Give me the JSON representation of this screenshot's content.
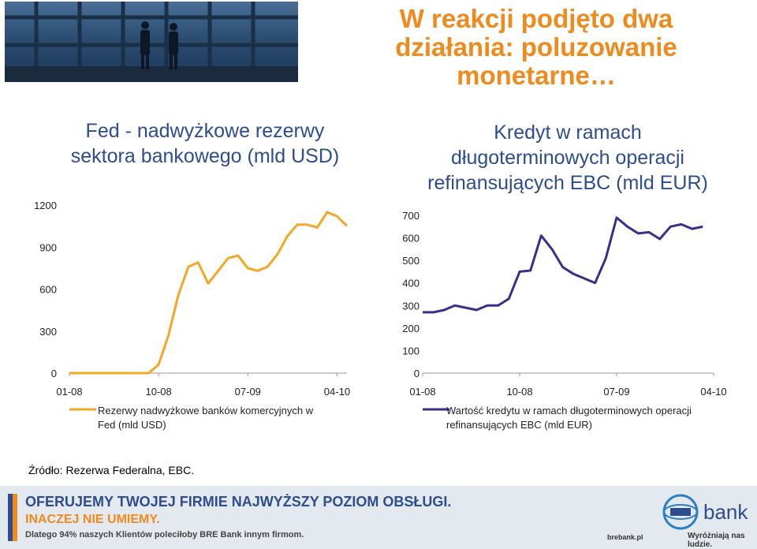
{
  "slide": {
    "title_lines": [
      "W reakcji podjęto dwa",
      "działania: poluzowanie",
      "monetarne…"
    ],
    "source": "Źródło: Rezerwa Federalna, EBC."
  },
  "banner": {
    "line1": "OFERUJEMY TWOJEJ FIRMIE NAJWYŻSZY POZIOM OBSŁUGI.",
    "line2": "INACZEJ NIE UMIEMY.",
    "line3": "Dlatego 94% naszych Klientów poleciłoby BRE Bank innym firmom.",
    "bank_name": "bank",
    "site": "brebank.pl",
    "slogan": "Wyróżniają nas ludzie."
  },
  "chart_data": [
    {
      "type": "line",
      "title_lines": [
        "Fed - nadwyżkowe rezerwy",
        "sektora bankowego (mld USD)"
      ],
      "x_tick_labels": [
        "01-08",
        "10-08",
        "07-09",
        "04-10"
      ],
      "x_tick_indices": [
        0,
        9,
        18,
        27
      ],
      "y_ticks": [
        0,
        300,
        600,
        900,
        1200
      ],
      "ylim": [
        0,
        1200
      ],
      "color": "#f5a623",
      "legend_placement": "bottom",
      "series": [
        {
          "name": "Rezerwy nadwyżkowe banków komercyjnych w Fed (mld USD)",
          "legend_lines": [
            "Rezerwy nadwyżkowe banków komercyjnych w",
            "Fed (mld USD)"
          ],
          "values": [
            0,
            0,
            0,
            0,
            0,
            0,
            0,
            0,
            0,
            60,
            270,
            560,
            760,
            790,
            640,
            730,
            820,
            840,
            750,
            730,
            760,
            850,
            980,
            1060,
            1060,
            1040,
            1150,
            1120,
            1050
          ]
        }
      ]
    },
    {
      "type": "line",
      "title_lines": [
        "Kredyt w ramach",
        "długoterminowych operacji",
        "refinansujących EBC (mld EUR)"
      ],
      "x_tick_labels": [
        "01-08",
        "10-08",
        "07-09",
        "04-10"
      ],
      "x_tick_indices": [
        0,
        9,
        18,
        27
      ],
      "y_ticks": [
        0,
        100,
        200,
        300,
        400,
        500,
        600,
        700
      ],
      "ylim": [
        0,
        700
      ],
      "color": "#3b2e8a",
      "legend_placement": "bottom",
      "series": [
        {
          "name": "Wartość kredytu w ramach długoterminowych operacji refinansujących EBC (mld EUR)",
          "legend_lines": [
            "Wartość kredytu w ramach długoterminowych operacji",
            "refinansujących EBC (mld EUR)"
          ],
          "values": [
            270,
            270,
            280,
            300,
            290,
            280,
            300,
            300,
            330,
            450,
            455,
            610,
            550,
            470,
            440,
            420,
            400,
            510,
            690,
            650,
            620,
            625,
            595,
            650,
            660,
            640,
            650
          ]
        }
      ]
    }
  ]
}
